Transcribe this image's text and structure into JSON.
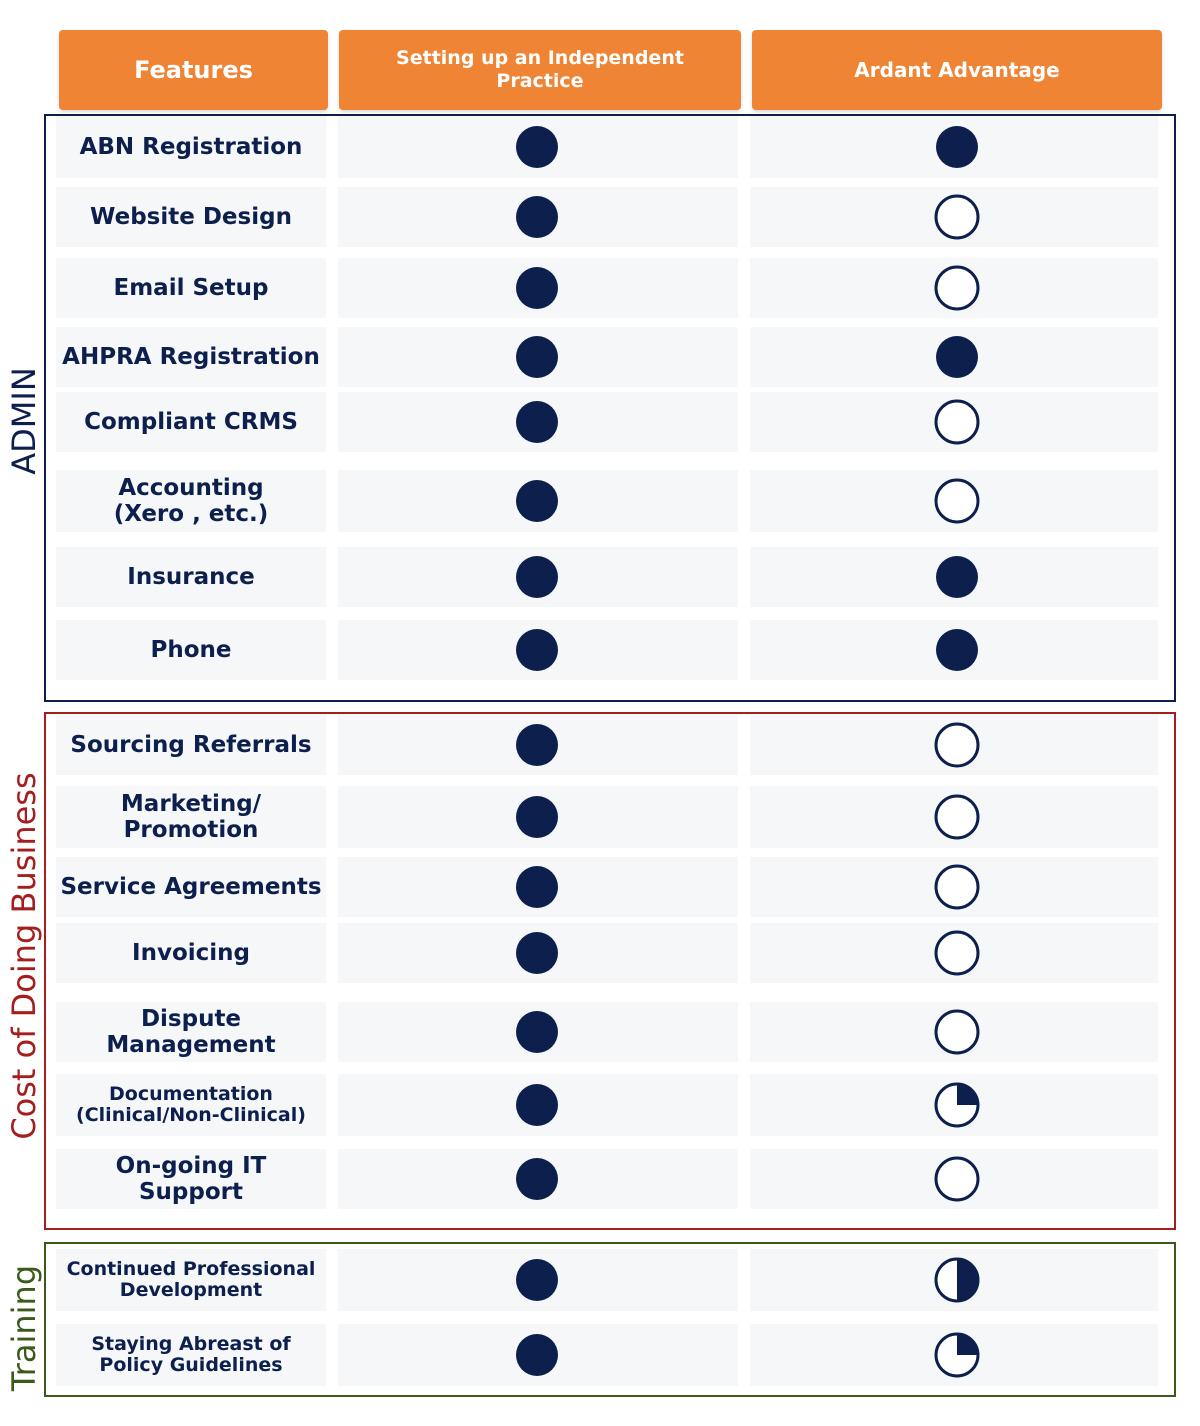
{
  "headers": {
    "features": "Features",
    "independent": "Setting up an Independent\nPractice",
    "ardant": "Ardant Advantage"
  },
  "sections": [
    {
      "label": "ADMIN",
      "color": "#0C1F4D"
    },
    {
      "label": "Cost of Doing Business",
      "color": "#A51E1E"
    },
    {
      "label": "Training",
      "color": "#3B5A1A"
    }
  ],
  "legend_fill_levels": "1 = full circle, 0 = empty circle, 0.25 = quarter, 0.5 = half",
  "rows": [
    {
      "feature": "ABN Registration",
      "independent": 1,
      "ardant": 1
    },
    {
      "feature": "Website Design",
      "independent": 1,
      "ardant": 0
    },
    {
      "feature": "Email Setup",
      "independent": 1,
      "ardant": 0
    },
    {
      "feature": "AHPRA Registration",
      "independent": 1,
      "ardant": 1
    },
    {
      "feature": "Compliant CRMS",
      "independent": 1,
      "ardant": 0
    },
    {
      "feature": "Accounting\n(Xero , etc.)",
      "independent": 1,
      "ardant": 0
    },
    {
      "feature": "Insurance",
      "independent": 1,
      "ardant": 1
    },
    {
      "feature": "Phone",
      "independent": 1,
      "ardant": 1
    },
    {
      "feature": "Sourcing Referrals",
      "independent": 1,
      "ardant": 0
    },
    {
      "feature": "Marketing/\nPromotion",
      "independent": 1,
      "ardant": 0
    },
    {
      "feature": "Service Agreements",
      "independent": 1,
      "ardant": 0
    },
    {
      "feature": "Invoicing",
      "independent": 1,
      "ardant": 0
    },
    {
      "feature": "Dispute Management",
      "independent": 1,
      "ardant": 0
    },
    {
      "feature": "Documentation\n(Clinical/Non-Clinical)",
      "independent": 1,
      "ardant": 0.25
    },
    {
      "feature": "On-going IT\nSupport",
      "independent": 1,
      "ardant": 0
    },
    {
      "feature": "Continued Professional\nDevelopment",
      "independent": 1,
      "ardant": 0.5
    },
    {
      "feature": "Staying Abreast of\nPolicy Guidelines",
      "independent": 1,
      "ardant": 0.25
    }
  ],
  "colors": {
    "header": "#EE8434",
    "dot": "#0C1F4D"
  }
}
